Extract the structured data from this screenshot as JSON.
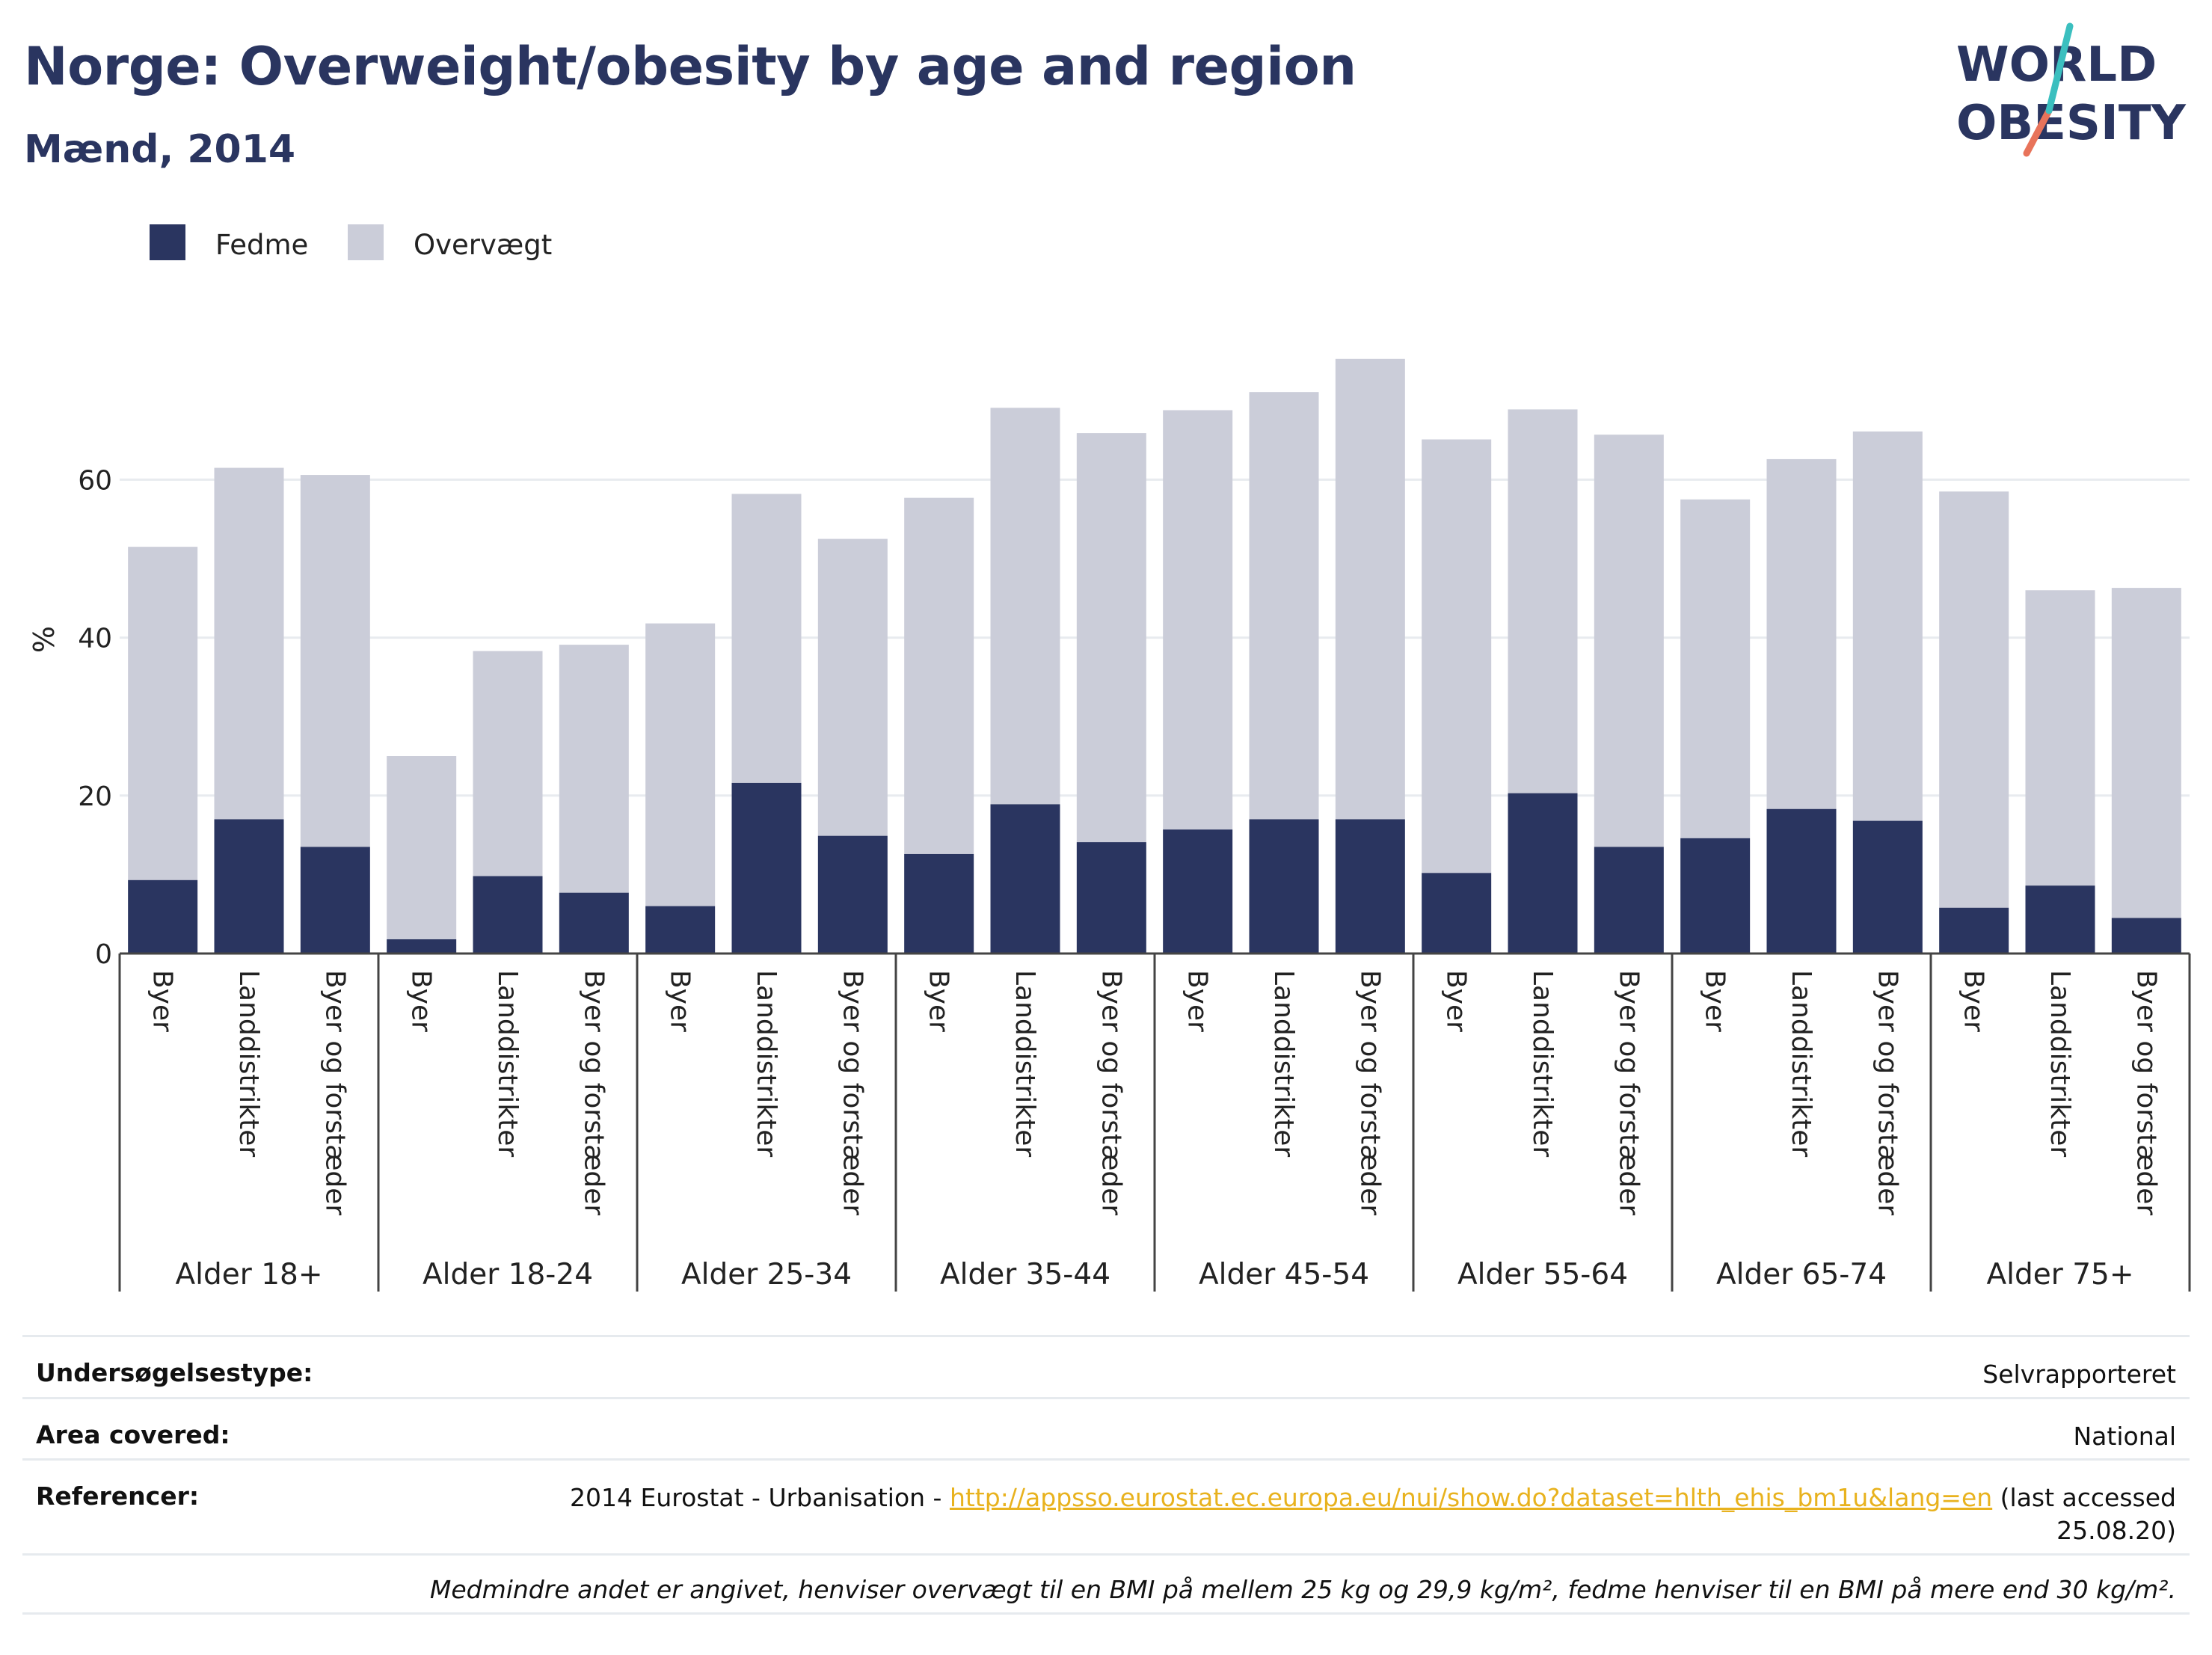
{
  "title": "Norge: Overweight/obesity by age and region",
  "subtitle": "Mænd, 2014",
  "logo": {
    "line1": "WORLD",
    "line2": "OBESITY",
    "colors": {
      "text": "#2a3560",
      "teal": "#3bbfbf",
      "coral": "#e8735a"
    }
  },
  "legend": [
    {
      "name": "Fedme",
      "color": "#2a3560"
    },
    {
      "name": "Overvægt",
      "color": "#cbcdd9"
    }
  ],
  "chart_data": {
    "type": "bar",
    "stacked": true,
    "ylabel": "%",
    "ylim": [
      0,
      80
    ],
    "yticks": [
      0,
      20,
      40,
      60
    ],
    "grid": true,
    "legend_position": "top-left",
    "groups": [
      {
        "label": "Alder 18+",
        "categories": [
          "Byer",
          "Landdistrikter",
          "Byer og forstæder"
        ],
        "fedme": [
          9.3,
          17.0,
          13.5
        ],
        "total": [
          51.5,
          61.5,
          60.6
        ]
      },
      {
        "label": "Alder 18-24",
        "categories": [
          "Byer",
          "Landdistrikter",
          "Byer og forstæder"
        ],
        "fedme": [
          1.8,
          9.8,
          7.7
        ],
        "total": [
          25.0,
          38.3,
          39.1
        ]
      },
      {
        "label": "Alder 25-34",
        "categories": [
          "Byer",
          "Landdistrikter",
          "Byer og forstæder"
        ],
        "fedme": [
          6.0,
          21.6,
          14.9
        ],
        "total": [
          41.8,
          58.2,
          52.5
        ]
      },
      {
        "label": "Alder 35-44",
        "categories": [
          "Byer",
          "Landdistrikter",
          "Byer og forstæder"
        ],
        "fedme": [
          12.6,
          18.9,
          14.1
        ],
        "total": [
          57.7,
          69.1,
          65.9
        ]
      },
      {
        "label": "Alder 45-54",
        "categories": [
          "Byer",
          "Landdistrikter",
          "Byer og forstæder"
        ],
        "fedme": [
          15.7,
          17.0,
          17.0
        ],
        "total": [
          68.8,
          71.1,
          75.3
        ]
      },
      {
        "label": "Alder 55-64",
        "categories": [
          "Byer",
          "Landdistrikter",
          "Byer og forstæder"
        ],
        "fedme": [
          10.2,
          20.3,
          13.5
        ],
        "total": [
          65.1,
          68.9,
          65.7
        ]
      },
      {
        "label": "Alder 65-74",
        "categories": [
          "Byer",
          "Landdistrikter",
          "Byer og forstæder"
        ],
        "fedme": [
          14.6,
          18.3,
          16.8
        ],
        "total": [
          57.5,
          62.6,
          66.1
        ]
      },
      {
        "label": "Alder 75+",
        "categories": [
          "Byer",
          "Landdistrikter",
          "Byer og forstæder"
        ],
        "fedme": [
          5.8,
          8.6,
          4.5
        ],
        "total": [
          58.5,
          46.0,
          46.3
        ]
      }
    ]
  },
  "info": {
    "survey_type": {
      "label": "Undersøgelsestype:",
      "value": "Selvrapporteret"
    },
    "area": {
      "label": "Area covered:",
      "value": "National"
    },
    "references": {
      "label": "Referencer:",
      "prefix": "2014 Eurostat - Urbanisation - ",
      "link": "http://appsso.eurostat.ec.europa.eu/nui/show.do?dataset=hlth_ehis_bm1u&lang=en",
      "suffix": " (last accessed",
      "date": "25.08.20)"
    },
    "note": "Medmindre andet er angivet, henviser overvægt til en BMI på mellem 25 kg og 29,9 kg/m², fedme henviser til en BMI på mere end 30 kg/m²."
  }
}
